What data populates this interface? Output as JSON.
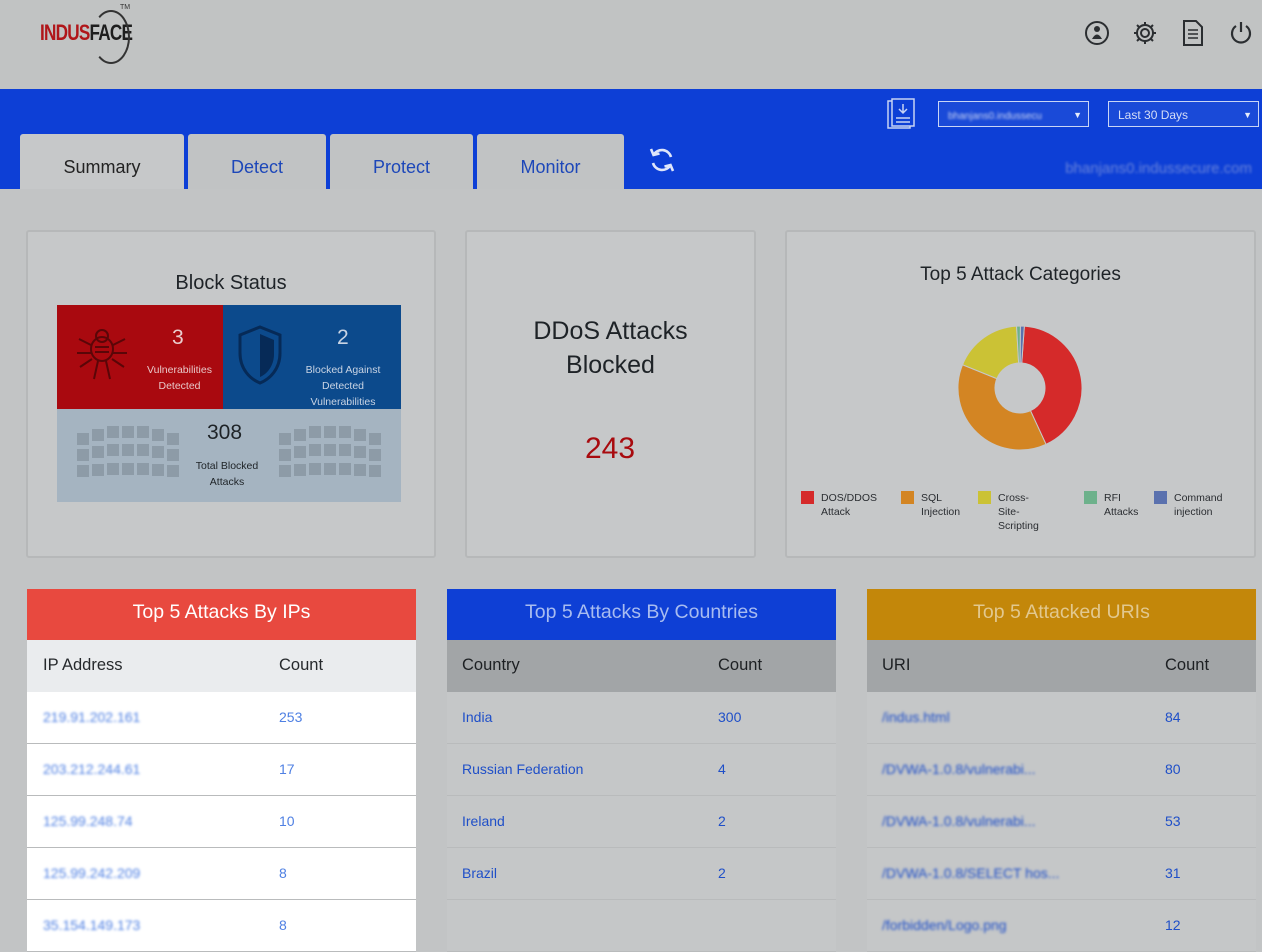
{
  "brand": {
    "part1": "INDUS",
    "part2": "FACE",
    "tm": "TM"
  },
  "header_icons": [
    "user-circle-icon",
    "gear-icon",
    "document-icon",
    "power-icon"
  ],
  "toolbar": {
    "report_icon": "report-icon",
    "site_select": "bhanjans0.indussecu",
    "range_select": "Last 30 Days",
    "domain": "bhanjans0.indussecure.com"
  },
  "tabs": [
    {
      "label": "Summary",
      "active": true
    },
    {
      "label": "Detect",
      "active": false
    },
    {
      "label": "Protect",
      "active": false
    },
    {
      "label": "Monitor",
      "active": false
    }
  ],
  "block_status": {
    "title": "Block Status",
    "vulnerabilities": {
      "count": "3",
      "label1": "Vulnerabilities",
      "label2": "Detected"
    },
    "blocked": {
      "count": "2",
      "label1": "Blocked Against",
      "label2": "Detected",
      "label3": "Vulnerabilities"
    },
    "total": {
      "count": "308",
      "label1": "Total Blocked",
      "label2": "Attacks"
    }
  },
  "ddos": {
    "title1": "DDoS Attacks",
    "title2": "Blocked",
    "count": "243"
  },
  "chart_data": {
    "type": "pie",
    "title": "Top 5 Attack Categories",
    "categories": [
      "DOS/DDOS Attack",
      "SQL Injection",
      "Cross-Site-Scripting",
      "RFI Attacks",
      "Command injection"
    ],
    "values": [
      42,
      38,
      18,
      1,
      1
    ],
    "colors": [
      "#d52a2a",
      "#d38523",
      "#cbc235",
      "#6db18b",
      "#5a71ae"
    ],
    "legend_position": "bottom",
    "legend": [
      {
        "line1": "DOS/DDOS",
        "line2": "Attack"
      },
      {
        "line1": "SQL",
        "line2": "Injection"
      },
      {
        "line1": "Cross-Site-",
        "line2": "Scripting"
      },
      {
        "line1": "RFI",
        "line2": "Attacks"
      },
      {
        "line1": "Command",
        "line2": "injection"
      }
    ]
  },
  "ips_table": {
    "title": "Top 5 Attacks By IPs",
    "headers": [
      "IP Address",
      "Count"
    ],
    "rows": [
      [
        "219.91.202.161",
        "253"
      ],
      [
        "203.212.244.61",
        "17"
      ],
      [
        "125.99.248.74",
        "10"
      ],
      [
        "125.99.242.209",
        "8"
      ],
      [
        "35.154.149.173",
        "8"
      ]
    ]
  },
  "countries_table": {
    "title": "Top 5 Attacks By Countries",
    "headers": [
      "Country",
      "Count"
    ],
    "rows": [
      [
        "India",
        "300"
      ],
      [
        "Russian Federation",
        "4"
      ],
      [
        "Ireland",
        "2"
      ],
      [
        "Brazil",
        "2"
      ],
      [
        "",
        ""
      ]
    ]
  },
  "uris_table": {
    "title": "Top 5 Attacked URIs",
    "headers": [
      "URI",
      "Count"
    ],
    "rows": [
      [
        "/indus.html",
        "84"
      ],
      [
        "/DVWA-1.0.8/vulnerabi...",
        "80"
      ],
      [
        "/DVWA-1.0.8/vulnerabi...",
        "53"
      ],
      [
        "/DVWA-1.0.8/SELECT hos...",
        "31"
      ],
      [
        "/forbidden/Logo.png",
        "12"
      ]
    ]
  }
}
